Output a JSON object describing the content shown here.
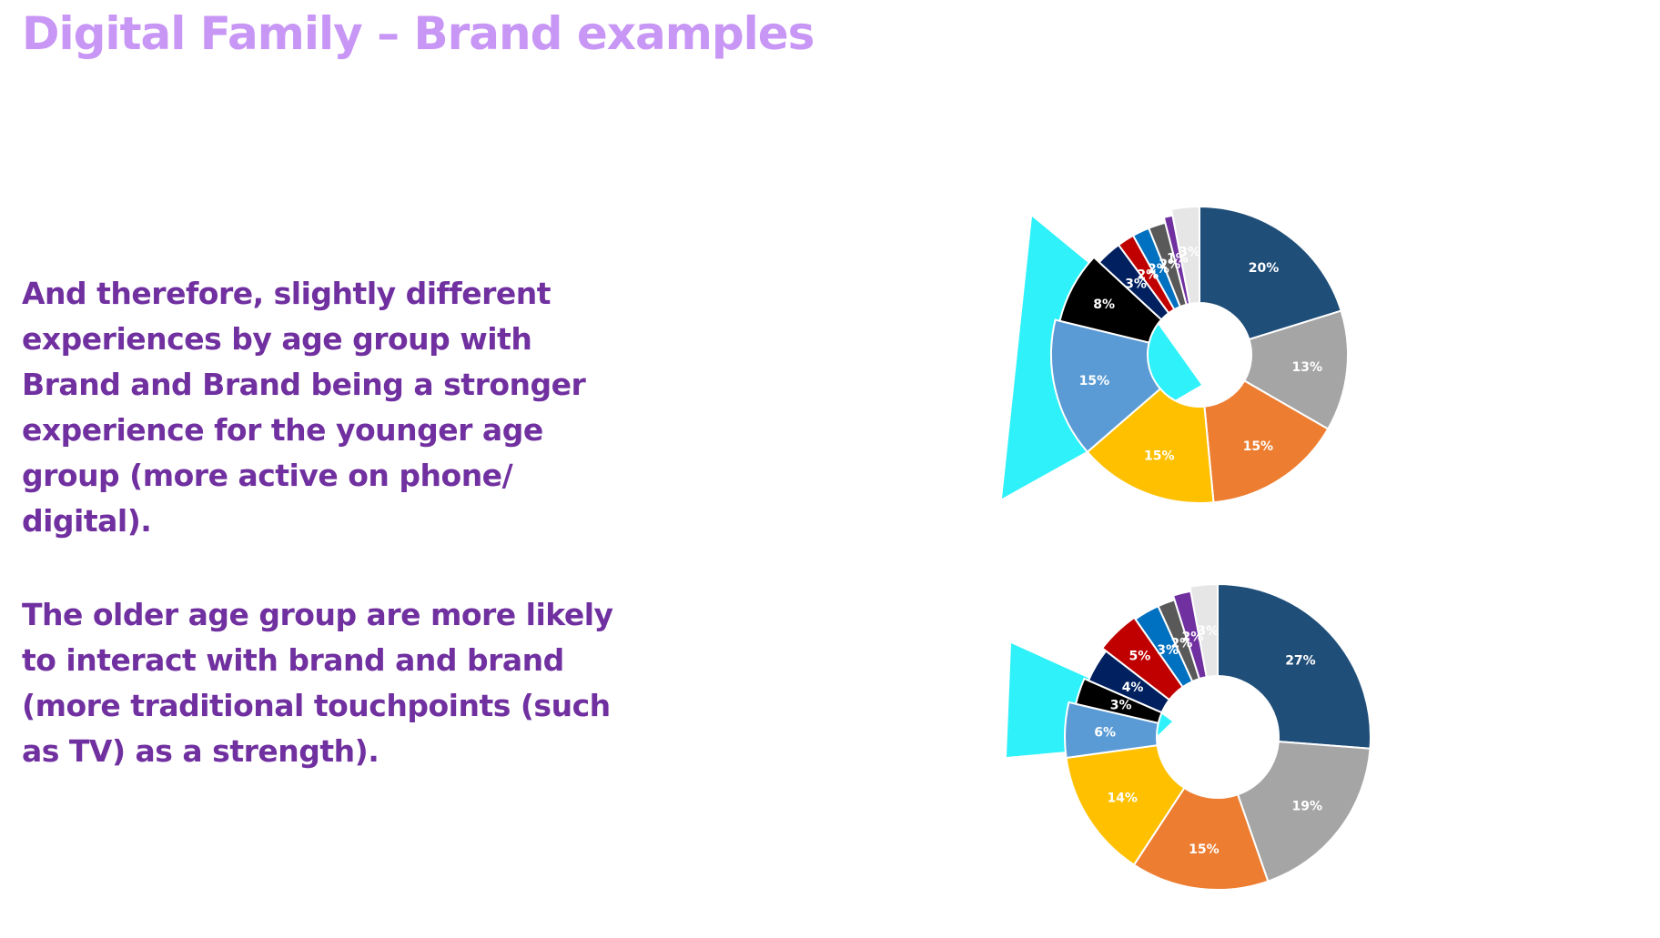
{
  "slide": {
    "title": "Digital Family – Brand examples",
    "paragraph_1": "And therefore, slightly different experiences by age group with Brand and Brand being a stronger experience for the younger age group (more active on phone/ digital).",
    "paragraph_2": "The older age group are more likely to interact with brand and brand (more traditional touchpoints (such as TV) as a strength)."
  },
  "chart_data": [
    {
      "type": "pie",
      "variant": "donut",
      "title": "",
      "labels": [
        "20%",
        "13%",
        "15%",
        "15%",
        "15%",
        "8%",
        "3%",
        "2%",
        "2%",
        "2%",
        "1%",
        "3%"
      ],
      "values": [
        20,
        13,
        15,
        15,
        15,
        8,
        3,
        2,
        2,
        2,
        1,
        3
      ],
      "colors": [
        "#1f4e79",
        "#a5a5a5",
        "#ed7d31",
        "#ffc000",
        "#5b9bd5",
        "#000000",
        "#002060",
        "#c00000",
        "#0070c0",
        "#595959",
        "#7030a0",
        "#e7e6e6"
      ],
      "highlight": "#2ef1f9",
      "legend": "none"
    },
    {
      "type": "pie",
      "variant": "donut",
      "title": "",
      "labels": [
        "27%",
        "19%",
        "15%",
        "14%",
        "6%",
        "3%",
        "4%",
        "5%",
        "3%",
        "2%",
        "2%",
        "3%"
      ],
      "values": [
        27,
        19,
        15,
        14,
        6,
        3,
        4,
        5,
        3,
        2,
        2,
        3
      ],
      "colors": [
        "#1f4e79",
        "#a5a5a5",
        "#ed7d31",
        "#ffc000",
        "#5b9bd5",
        "#000000",
        "#002060",
        "#c00000",
        "#0070c0",
        "#595959",
        "#7030a0",
        "#e7e6e6"
      ],
      "highlight": "#2ef1f9",
      "legend": "none"
    }
  ]
}
